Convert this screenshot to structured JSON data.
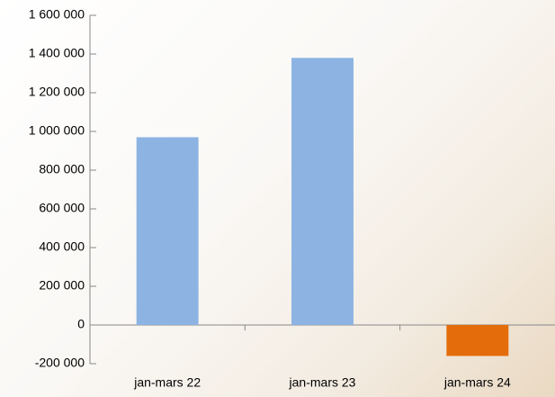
{
  "chart_data": {
    "type": "bar",
    "categories": [
      "jan-mars 22",
      "jan-mars 23",
      "jan-mars 24"
    ],
    "values": [
      970000,
      1380000,
      -160000
    ],
    "colors": [
      "#8db3e2",
      "#8db3e2",
      "#e46c0a"
    ],
    "ylim": [
      -200000,
      1600000
    ],
    "yticks": [
      {
        "value": -200000,
        "label": "-200 000"
      },
      0,
      {
        "value": 200000,
        "label": "200 000"
      },
      {
        "value": 400000,
        "label": "400 000"
      },
      {
        "value": 600000,
        "label": "600 000"
      },
      {
        "value": 800000,
        "label": "800 000"
      },
      {
        "value": 1000000,
        "label": "1 000 000"
      },
      {
        "value": 1200000,
        "label": "1 200 000"
      },
      {
        "value": 1400000,
        "label": "1 400 000"
      },
      {
        "value": 1600000,
        "label": "1 600 000"
      }
    ],
    "grid": false
  }
}
